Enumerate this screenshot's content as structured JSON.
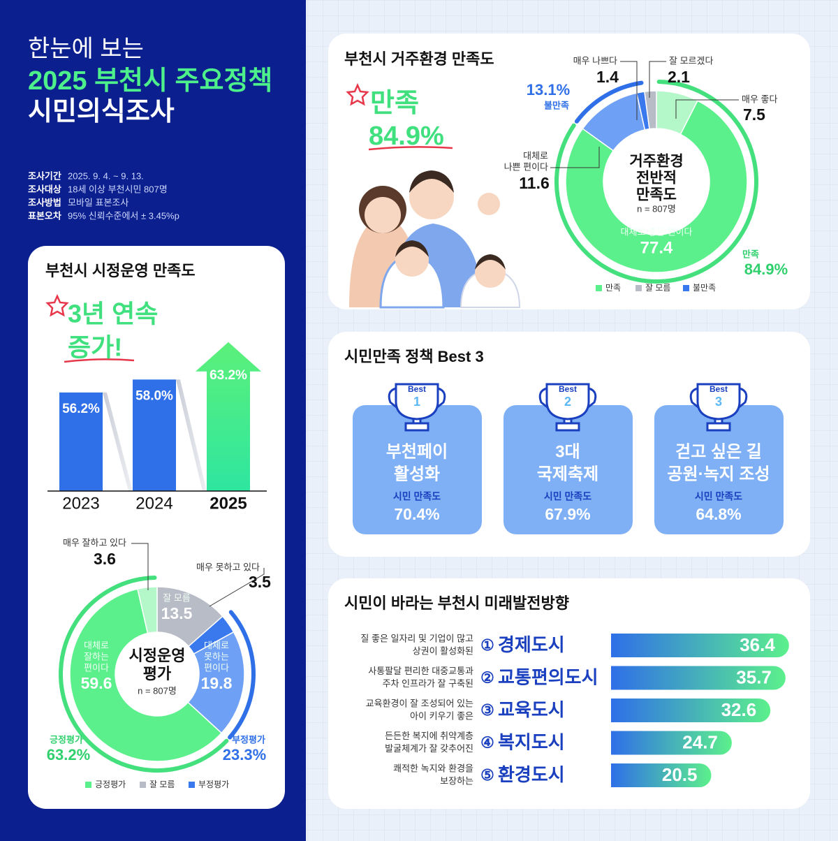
{
  "header": {
    "subtitle": "한눈에 보는",
    "title_line1": "2025 부천시 주요정책",
    "title_line2": "시민의식조사"
  },
  "survey_info": [
    {
      "label": "조사기간",
      "text": "2025. 9. 4. ~ 9. 13."
    },
    {
      "label": "조사대상",
      "text": "18세 이상 부천시민 807명"
    },
    {
      "label": "조사방법",
      "text": "모바일 표본조사"
    },
    {
      "label": "표본오차",
      "text": "95% 신뢰수준에서 ± 3.45%p"
    }
  ],
  "admin": {
    "title": "부천시 시정운영 만족도",
    "headline": [
      "3년 연속",
      "증가!"
    ],
    "trend": {
      "type": "bar",
      "categories": [
        "2023",
        "2024",
        "2025"
      ],
      "values": [
        56.2,
        58.0,
        63.2
      ],
      "value_labels": [
        "56.2%",
        "58.0%",
        "63.2%"
      ]
    },
    "evaluation": {
      "type": "donut",
      "center": [
        "시정운영",
        "평가"
      ],
      "n": "n = 807명",
      "segments": [
        {
          "label": [
            "잘 모름"
          ],
          "value": 13.5,
          "color": "#b7bcc6"
        },
        {
          "label": [
            "매우 못하고 있다"
          ],
          "value": 3.5,
          "color": "#3a78ee"
        },
        {
          "label": [
            "대체로",
            "못하는",
            "편이다"
          ],
          "value": 19.8,
          "color": "#6ea0f6"
        },
        {
          "label": [
            "대체로",
            "잘하는",
            "편이다"
          ],
          "value": 59.6,
          "color": "#5cf08c"
        },
        {
          "label": [
            "매우 잘하고 있다"
          ],
          "value": 3.6,
          "color": "#b4f7c8"
        }
      ],
      "groups": [
        {
          "name": "긍정평가",
          "value": 63.2,
          "value_label": "63.2%",
          "color": "#43e07d"
        },
        {
          "name": "부정평가",
          "value": 23.3,
          "value_label": "23.3%",
          "color": "#2f6fe8"
        }
      ],
      "legend": [
        {
          "name": "긍정평가",
          "color": "#5cf08c"
        },
        {
          "name": "잘 모름",
          "color": "#b7bcc6"
        },
        {
          "name": "부정평가",
          "color": "#3a78ee"
        }
      ]
    }
  },
  "residence": {
    "title": "부천시 거주환경 만족도",
    "headline": [
      "만족",
      "84.9%"
    ],
    "type": "donut",
    "center": [
      "거주환경",
      "전반적",
      "만족도"
    ],
    "n": "n = 807명",
    "segments": [
      {
        "label": [
          "매우 좋다"
        ],
        "value": 7.5,
        "color": "#b4f7c8"
      },
      {
        "label": [
          "대체로 좋은 편이다"
        ],
        "value": 77.4,
        "color": "#5cf08c"
      },
      {
        "label": [
          "대체로",
          "나쁜 편이다"
        ],
        "value": 11.6,
        "color": "#6ea0f6"
      },
      {
        "label": [
          "매우 나쁘다"
        ],
        "value": 1.4,
        "color": "#3a78ee"
      },
      {
        "label": [
          "잘 모르겠다"
        ],
        "value": 2.1,
        "color": "#b7bcc6"
      }
    ],
    "groups": [
      {
        "name": "만족",
        "value": 84.9,
        "value_label": "84.9%",
        "color": "#43e07d"
      },
      {
        "name": "불만족",
        "value": 13.1,
        "value_label": "13.1%",
        "color": "#2f6fe8"
      }
    ],
    "legend": [
      {
        "name": "만족",
        "color": "#5cf08c"
      },
      {
        "name": "잘 모름",
        "color": "#b7bcc6"
      },
      {
        "name": "불만족",
        "color": "#3a78ee"
      }
    ]
  },
  "best3": {
    "title": "시민만족 정책 Best 3",
    "items": [
      {
        "rank_label": "Best",
        "rank": 1,
        "name": [
          "부천페이",
          "활성화"
        ],
        "metric": "시민 만족도",
        "value": 70.4,
        "value_label": "70.4%"
      },
      {
        "rank_label": "Best",
        "rank": 2,
        "name": [
          "3대",
          "국제축제"
        ],
        "metric": "시민 만족도",
        "value": 67.9,
        "value_label": "67.9%"
      },
      {
        "rank_label": "Best",
        "rank": 3,
        "name": [
          "걷고 싶은 길",
          "공원·녹지 조성"
        ],
        "metric": "시민 만족도",
        "value": 64.8,
        "value_label": "64.8%"
      }
    ]
  },
  "future": {
    "title": "시민이 바라는 부천시 미래발전방향",
    "type": "bar",
    "items": [
      {
        "desc": [
          "질 좋은 일자리 및 기업이 많고",
          "상권이 활성화된"
        ],
        "marker": "①",
        "name": "경제도시",
        "value": 36.4
      },
      {
        "desc": [
          "사통팔달 편리한 대중교통과",
          "주차 인프라가 잘 구축된"
        ],
        "marker": "②",
        "name": "교통편의도시",
        "value": 35.7
      },
      {
        "desc": [
          "교육환경이 잘 조성되어 있는",
          "아이 키우기 좋은"
        ],
        "marker": "③",
        "name": "교육도시",
        "value": 32.6
      },
      {
        "desc": [
          "든든한 복지에 취약계층",
          "발굴체계가 잘 갖추어진"
        ],
        "marker": "④",
        "name": "복지도시",
        "value": 24.7
      },
      {
        "desc": [
          "쾌적한 녹지와 환경을",
          "보장하는"
        ],
        "marker": "⑤",
        "name": "환경도시",
        "value": 20.5
      }
    ]
  }
}
